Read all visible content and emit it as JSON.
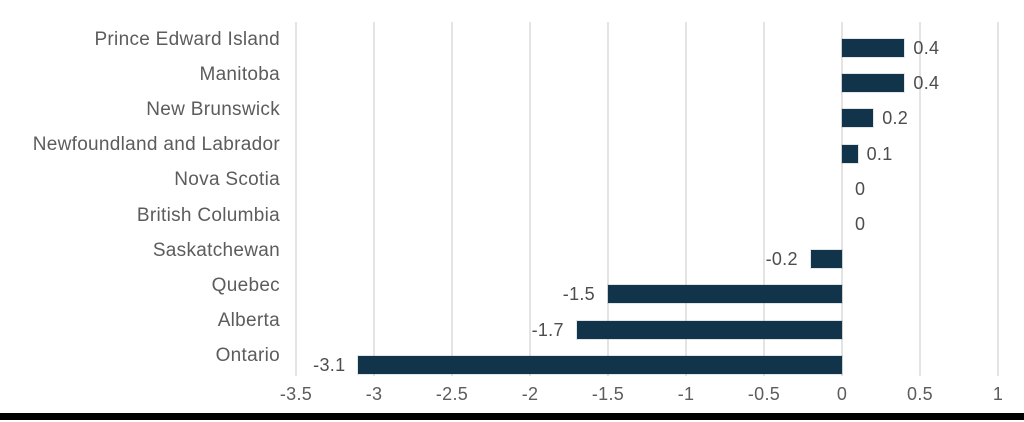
{
  "chart_data": {
    "type": "bar",
    "orientation": "horizontal",
    "categories": [
      "Prince Edward Island",
      "Manitoba",
      "New Brunswick",
      "Newfoundland and Labrador",
      "Nova Scotia",
      "British Columbia",
      "Saskatchewan",
      "Quebec",
      "Alberta",
      "Ontario"
    ],
    "values": [
      0.4,
      0.4,
      0.2,
      0.1,
      0,
      0,
      -0.2,
      -1.5,
      -1.7,
      -3.1
    ],
    "value_labels": [
      "0.4",
      "0.4",
      "0.2",
      "0.1",
      "0",
      "0",
      "-0.2",
      "-1.5",
      "-1.7",
      "-3.1"
    ],
    "x_ticks": [
      -3.5,
      -3,
      -2.5,
      -2,
      -1.5,
      -1,
      -0.5,
      0,
      0.5,
      1
    ],
    "x_tick_labels": [
      "-3.5",
      "-3",
      "-2.5",
      "-2",
      "-1.5",
      "-1",
      "-0.5",
      "0",
      "0.5",
      "1"
    ],
    "xlim": [
      -3.5,
      1
    ],
    "grid": "vertical-only",
    "legend": "none",
    "colors": {
      "bar": "#12344A",
      "category_label": "#5C5C5C",
      "value_label": "#4D4D4D",
      "tick_label": "#5C5C5C",
      "gridline": "#E4E4E4",
      "bottom_rule": "#000000"
    }
  }
}
